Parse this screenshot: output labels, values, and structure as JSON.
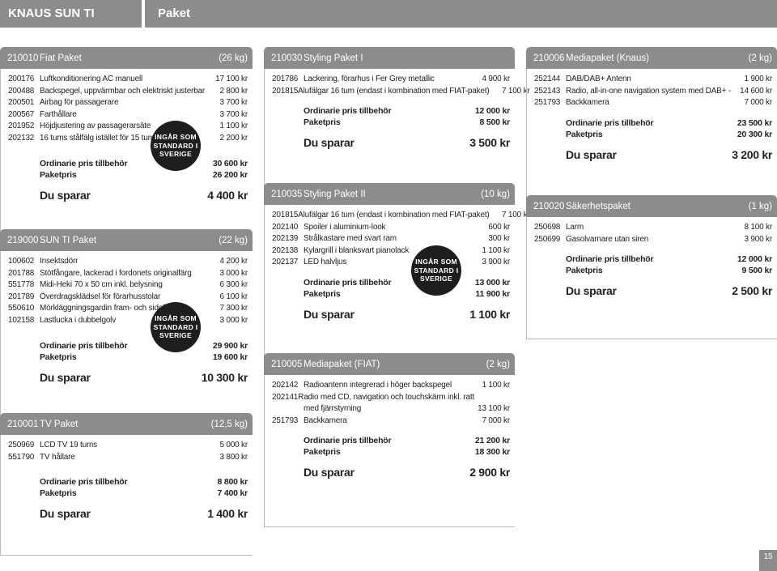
{
  "header": {
    "brand": "KNAUS SUN TI",
    "title": "Paket"
  },
  "page_number": "15",
  "badge": {
    "line1": "INGÅR SOM",
    "line2": "STANDARD I",
    "line3": "SVERIGE"
  },
  "labels": {
    "ordinarie": "Ordinarie pris tillbehör",
    "paketpris": "Paketpris",
    "du_sparar": "Du sparar"
  },
  "packages": {
    "fiat": {
      "code": "210010",
      "name": "Fiat Paket",
      "weight": "(26 kg)",
      "items": [
        {
          "code": "200176",
          "desc": "Luftkonditionering AC manuell",
          "price": "17 100 kr"
        },
        {
          "code": "200488",
          "desc": "Backspegel, uppvärmbar och elektriskt justerbar",
          "price": "2 800 kr"
        },
        {
          "code": "200501",
          "desc": "Airbag för passagerare",
          "price": "3 700 kr"
        },
        {
          "code": "200567",
          "desc": "Farthållare",
          "price": "3 700 kr"
        },
        {
          "code": "201952",
          "desc": "Höjdjustering av passagerarsäte",
          "price": "1 100 kr"
        },
        {
          "code": "202132",
          "desc": "16 tums stålfälg istället för 15 tum",
          "price": "2 200 kr"
        }
      ],
      "ordinarie": "30 600 kr",
      "paketpris": "26 200 kr",
      "sparar": "4 400 kr"
    },
    "sunti": {
      "code": "219000",
      "name": "SUN TI Paket",
      "weight": "(22 kg)",
      "items": [
        {
          "code": "100602",
          "desc": "Insektsdörr",
          "price": "4 200 kr"
        },
        {
          "code": "201788",
          "desc": "Stötfångare, lackerad i fordonets originalfärg",
          "price": "3 000 kr"
        },
        {
          "code": "551778",
          "desc": "Midi-Heki 70 x 50 cm inkl. belysning",
          "price": "6 300 kr"
        },
        {
          "code": "201789",
          "desc": "Överdragsklädsel för förarhusstolar",
          "price": "6 100 kr"
        },
        {
          "code": "550610",
          "desc": "Mörkläggningsgardin fram- och sidofönster",
          "price": "7 300 kr"
        },
        {
          "code": "102158",
          "desc": "Lastlucka i dubbelgolv",
          "price": "3 000 kr"
        }
      ],
      "ordinarie": "29 900 kr",
      "paketpris": "19 600 kr",
      "sparar": "10 300 kr"
    },
    "tv": {
      "code": "210001",
      "name": "TV Paket",
      "weight": "(12,5 kg)",
      "items": [
        {
          "code": "250969",
          "desc": "LCD TV 19 tums",
          "price": "5 000 kr"
        },
        {
          "code": "551790",
          "desc": "TV hållare",
          "price": "3 800 kr"
        }
      ],
      "ordinarie": "8 800 kr",
      "paketpris": "7 400 kr",
      "sparar": "1 400 kr"
    },
    "styling1": {
      "code": "210030",
      "name": "Styling Paket I",
      "weight": "",
      "items": [
        {
          "code": "201786",
          "desc": "Lackering, förarhus i Fer Grey metallic",
          "price": "4 900 kr"
        },
        {
          "code": "201815",
          "desc": "Alufälgar 16 tum (endast i kombination med FIAT-paket)",
          "price": "7 100 kr"
        }
      ],
      "ordinarie": "12 000 kr",
      "paketpris": "8 500 kr",
      "sparar": "3 500 kr"
    },
    "styling2": {
      "code": "210035",
      "name": "Styling Paket II",
      "weight": "(10 kg)",
      "items": [
        {
          "code": "201815",
          "desc": "Alufälgar 16 tum (endast i kombination med FIAT-paket)",
          "price": "7 100 kr"
        },
        {
          "code": "202140",
          "desc": "Spoiler i aluminium-look",
          "price": "600 kr"
        },
        {
          "code": "202139",
          "desc": "Strålkastare med svart ram",
          "price": "300 kr"
        },
        {
          "code": "202138",
          "desc": "Kylargrill i blanksvart pianolack",
          "price": "1 100 kr"
        },
        {
          "code": "202137",
          "desc": "LED halvljus",
          "price": "3 900 kr"
        }
      ],
      "ordinarie": "13 000 kr",
      "paketpris": "11 900 kr",
      "sparar": "1 100 kr"
    },
    "mediafiat": {
      "code": "210005",
      "name": "Mediapaket (FIAT)",
      "weight": "(2 kg)",
      "items": [
        {
          "code": "202142",
          "desc": "Radioantenn integrerad i höger backspegel",
          "price": "1 100 kr"
        },
        {
          "code": "202141",
          "desc": "Radio med CD, navigation och touchskärm inkl. ratt",
          "price": ""
        },
        {
          "code": "",
          "desc": "med fjärrstyrning",
          "price": "13 100 kr"
        },
        {
          "code": "251793",
          "desc": "Backkamera",
          "price": "7 000 kr"
        }
      ],
      "ordinarie": "21 200 kr",
      "paketpris": "18 300 kr",
      "sparar": "2 900 kr"
    },
    "mediaknaus": {
      "code": "210006",
      "name": "Mediapaket (Knaus)",
      "weight": "(2 kg)",
      "items": [
        {
          "code": "252144",
          "desc": "DAB/DAB+ Antenn",
          "price": "1 900 kr"
        },
        {
          "code": "252143",
          "desc": "Radio, all-in-one navigation system med DAB+ -",
          "price": "14 600 kr"
        },
        {
          "code": "251793",
          "desc": "Backkamera",
          "price": "7 000 kr"
        }
      ],
      "ordinarie": "23 500 kr",
      "paketpris": "20 300 kr",
      "sparar": "3 200 kr"
    },
    "sakerhet": {
      "code": "210020",
      "name": "Säkerhetspaket",
      "weight": "(1 kg)",
      "items": [
        {
          "code": "250698",
          "desc": "Larm",
          "price": "8 100 kr"
        },
        {
          "code": "250699",
          "desc": "Gasolvarnare utan siren",
          "price": "3 900 kr"
        }
      ],
      "ordinarie": "12 000 kr",
      "paketpris": "9 500 kr",
      "sparar": "2 500 kr"
    }
  }
}
